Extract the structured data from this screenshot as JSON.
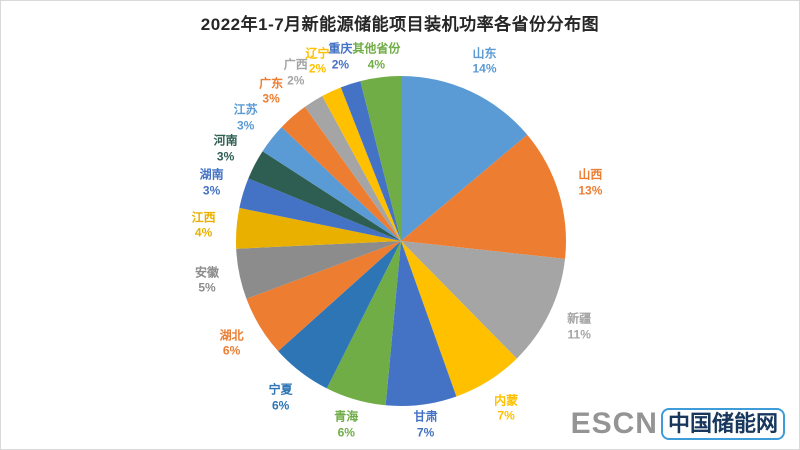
{
  "title": "2022年1-7月新能源储能项目装机功率各省份分布图",
  "watermark": {
    "en": "ESCN",
    "zh": "中国储能网"
  },
  "chart_data": {
    "type": "pie",
    "title": "2022年1-7月新能源储能项目装机功率各省份分布图",
    "unit": "percent",
    "start_angle_deg": 0,
    "direction": "clockwise",
    "labels_position": "outside",
    "label_format": "name + percent, text colored to match slice",
    "slices": [
      {
        "name": "山东",
        "value": 14,
        "display": "14%",
        "color": "#5B9BD5"
      },
      {
        "name": "山西",
        "value": 13,
        "display": "13%",
        "color": "#ED7D31"
      },
      {
        "name": "新疆",
        "value": 11,
        "display": "11%",
        "color": "#A5A5A5"
      },
      {
        "name": "内蒙",
        "value": 7,
        "display": "7%",
        "color": "#FFC000"
      },
      {
        "name": "甘肃",
        "value": 7,
        "display": "7%",
        "color": "#4472C4"
      },
      {
        "name": "青海",
        "value": 6,
        "display": "6%",
        "color": "#70AD47"
      },
      {
        "name": "宁夏",
        "value": 6,
        "display": "6%",
        "color": "#2E75B6"
      },
      {
        "name": "湖北",
        "value": 6,
        "display": "6%",
        "color": "#ED7D31"
      },
      {
        "name": "安徽",
        "value": 5,
        "display": "5%",
        "color": "#8C8C8C"
      },
      {
        "name": "江西",
        "value": 4,
        "display": "4%",
        "color": "#EAB000"
      },
      {
        "name": "湖南",
        "value": 3,
        "display": "3%",
        "color": "#4472C4"
      },
      {
        "name": "河南",
        "value": 3,
        "display": "3%",
        "color": "#2E5E52"
      },
      {
        "name": "江苏",
        "value": 3,
        "display": "3%",
        "color": "#5B9BD5"
      },
      {
        "name": "广东",
        "value": 3,
        "display": "3%",
        "color": "#ED7D31"
      },
      {
        "name": "广西",
        "value": 2,
        "display": "2%",
        "color": "#A5A5A5"
      },
      {
        "name": "辽宁",
        "value": 2,
        "display": "2%",
        "color": "#FFC000"
      },
      {
        "name": "重庆",
        "value": 2,
        "display": "2%",
        "color": "#4472C4"
      },
      {
        "name": "其他省份",
        "value": 4,
        "display": "4%",
        "color": "#70AD47"
      }
    ]
  }
}
